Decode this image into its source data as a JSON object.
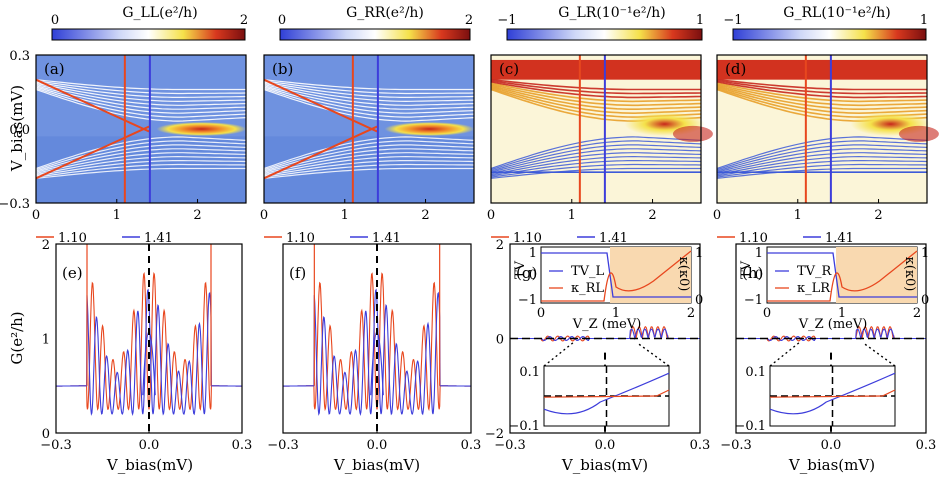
{
  "colors": {
    "red": "#e8471e",
    "blue": "#3d3ddb",
    "cmap": [
      "#2f3fd6",
      "#ffffff",
      "#f5e14a",
      "#c7261c",
      "#7a0f0f"
    ]
  },
  "chart_data": {
    "type": "heatmap",
    "colorbars": [
      {
        "title": "G_LL(e²/h)",
        "min": "0",
        "max": "2"
      },
      {
        "title": "G_RR(e²/h)",
        "min": "0",
        "max": "2"
      },
      {
        "title": "G_LR(10⁻¹e²/h)",
        "min": "−1",
        "max": "1"
      },
      {
        "title": "G_RL(10⁻¹e²/h)",
        "min": "−1",
        "max": "1"
      }
    ],
    "top_panels": [
      {
        "label": "(a)"
      },
      {
        "label": "(b)"
      },
      {
        "label": "(c)"
      },
      {
        "label": "(d)"
      }
    ],
    "top_axes": {
      "ylabel": "V_bias(mV)",
      "yticks": [
        "0.3",
        "0.0",
        "−0.3"
      ],
      "xticks": [
        "0",
        "1",
        "2"
      ],
      "ylim": [
        -0.3,
        0.3
      ],
      "xlim": [
        0,
        2.6
      ],
      "vlines": [
        1.1,
        1.41
      ]
    },
    "bottom_panels": [
      {
        "label": "(e)"
      },
      {
        "label": "(f)"
      },
      {
        "label": "(g)"
      },
      {
        "label": "(h)"
      }
    ],
    "bottom_axes": {
      "ylabel": "G(e²/h)",
      "xlabel": "V_bias(mV)",
      "xticks": [
        "−0.3",
        "0.0",
        "0.3"
      ],
      "yticks_ef": [
        "2",
        "1",
        "0"
      ],
      "yticks_gh": [
        "2",
        "0",
        "−2"
      ],
      "ylim_ef": [
        0,
        2
      ],
      "ylim_gh": [
        -2,
        2
      ]
    },
    "legend": {
      "series": [
        "1.10",
        "1.41"
      ]
    },
    "insets": [
      {
        "panel": "(g)",
        "tv": "TV_L",
        "kappa": "κ_RL",
        "left_label": "TV",
        "right_label": "κ(κ0)",
        "yticks_left": [
          "1",
          "0",
          "−1"
        ],
        "yticks_right": [
          "1",
          "0"
        ],
        "xticks": [
          "0",
          "1",
          "2"
        ],
        "xlabel": "V_Z (meV)",
        "zoom_yticks": [
          "0.1",
          "−0.1"
        ]
      },
      {
        "panel": "(h)",
        "tv": "TV_R",
        "kappa": "κ_LR",
        "left_label": "TV",
        "right_label": "κ(κ0)",
        "yticks_left": [
          "1",
          "0",
          "−1"
        ],
        "yticks_right": [
          "1",
          "0"
        ],
        "xticks": [
          "0",
          "1",
          "2"
        ],
        "xlabel": "V_Z (meV)",
        "zoom_yticks": [
          "0.1",
          "−0.1"
        ]
      }
    ]
  }
}
